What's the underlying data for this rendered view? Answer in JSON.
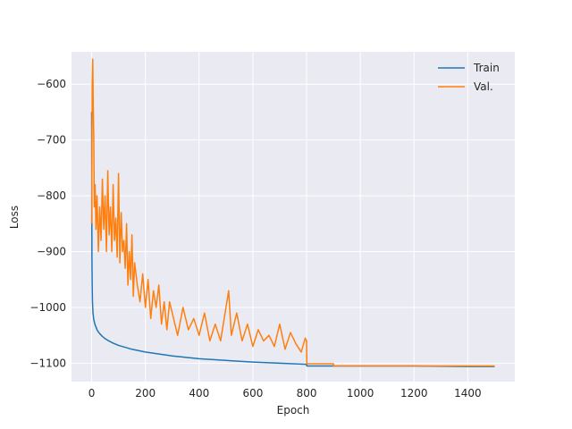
{
  "chart_data": {
    "type": "line",
    "title": "",
    "xlabel": "Epoch",
    "ylabel": "Loss",
    "xlim": [
      -75,
      1575
    ],
    "ylim": [
      -1133,
      -542
    ],
    "xticks": [
      0,
      200,
      400,
      600,
      800,
      1000,
      1200,
      1400
    ],
    "yticks": [
      -1100,
      -1000,
      -900,
      -800,
      -700,
      -600
    ],
    "xtick_labels": [
      "0",
      "200",
      "400",
      "600",
      "800",
      "1000",
      "1200",
      "1400"
    ],
    "ytick_labels": [
      "−1100",
      "−1000",
      "−900",
      "−800",
      "−700",
      "−600"
    ],
    "grid": true,
    "legend_position": "top-right",
    "series": [
      {
        "name": "Train",
        "color": "#1f77b4",
        "x": [
          0,
          1,
          2,
          3,
          5,
          8,
          12,
          16,
          20,
          25,
          30,
          40,
          50,
          60,
          80,
          100,
          150,
          200,
          300,
          400,
          500,
          600,
          700,
          800,
          801,
          900,
          1000,
          1200,
          1400,
          1500
        ],
        "y": [
          -650,
          -910,
          -960,
          -990,
          -1010,
          -1022,
          -1030,
          -1035,
          -1040,
          -1044,
          -1047,
          -1052,
          -1056,
          -1059,
          -1064,
          -1068,
          -1075,
          -1080,
          -1087,
          -1092,
          -1095,
          -1098,
          -1100,
          -1102,
          -1105,
          -1105,
          -1105,
          -1105,
          -1106,
          -1106
        ]
      },
      {
        "name": "Val.",
        "color": "#ff7f0e",
        "x": [
          0,
          2,
          4,
          6,
          8,
          10,
          13,
          16,
          20,
          25,
          30,
          35,
          40,
          45,
          50,
          55,
          60,
          65,
          70,
          75,
          80,
          85,
          90,
          95,
          100,
          105,
          110,
          115,
          120,
          125,
          130,
          135,
          140,
          145,
          150,
          155,
          160,
          170,
          180,
          190,
          200,
          210,
          220,
          230,
          240,
          250,
          260,
          270,
          280,
          290,
          300,
          320,
          340,
          360,
          380,
          400,
          420,
          440,
          460,
          480,
          500,
          510,
          520,
          540,
          560,
          580,
          600,
          620,
          640,
          660,
          680,
          700,
          720,
          740,
          760,
          780,
          795,
          800,
          801,
          850,
          900,
          901,
          1000,
          1200,
          1400,
          1500
        ],
        "y": [
          -850,
          -600,
          -555,
          -640,
          -700,
          -820,
          -780,
          -860,
          -800,
          -900,
          -820,
          -880,
          -770,
          -860,
          -800,
          -900,
          -755,
          -870,
          -820,
          -900,
          -780,
          -880,
          -840,
          -910,
          -760,
          -920,
          -830,
          -900,
          -880,
          -930,
          -850,
          -960,
          -900,
          -950,
          -870,
          -980,
          -920,
          -960,
          -990,
          -940,
          -1000,
          -950,
          -1020,
          -970,
          -1000,
          -960,
          -1030,
          -990,
          -1040,
          -990,
          -1010,
          -1050,
          -1000,
          -1040,
          -1020,
          -1050,
          -1010,
          -1060,
          -1030,
          -1060,
          -1000,
          -970,
          -1050,
          -1010,
          -1060,
          -1030,
          -1070,
          -1040,
          -1060,
          -1050,
          -1070,
          -1030,
          -1075,
          -1045,
          -1065,
          -1080,
          -1055,
          -1060,
          -1101,
          -1101,
          -1101,
          -1105,
          -1105,
          -1105,
          -1105,
          -1105
        ]
      }
    ]
  }
}
